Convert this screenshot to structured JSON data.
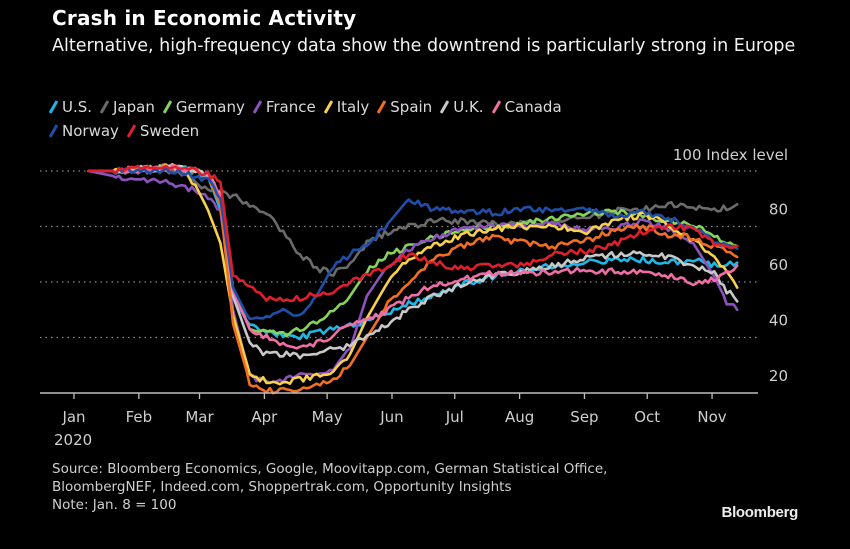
{
  "header": {
    "title": "Crash in Economic Activity",
    "subtitle": "Alternative, high-frequency data show the downtrend is particularly strong in Europe"
  },
  "footer": {
    "source_line1": "Source: Bloomberg Economics, Google, Moovitapp.com, German Statistical Office,",
    "source_line2": "BloombergNEF, Indeed.com, Shoppertrak.com, Opportunity Insights",
    "note": "Note: Jan. 8 = 100",
    "brand": "Bloomberg"
  },
  "chart_data": {
    "type": "line",
    "title": "Crash in Economic Activity",
    "subtitle": "Alternative, high-frequency data show the downtrend is particularly strong in Europe",
    "xlabel": "",
    "ylabel": "Index level",
    "y_unit_label": "100 Index level",
    "ylim": [
      20,
      100
    ],
    "yticks": [
      20,
      40,
      60,
      80,
      100
    ],
    "ytick_labels": [
      "20",
      "40",
      "60",
      "80",
      "100 Index level"
    ],
    "y_axis_side": "right",
    "grid": "horizontal dotted",
    "x_unit": "day of year 2020",
    "xlim": [
      0,
      330
    ],
    "xticks": [
      {
        "label": "Jan",
        "day": 0
      },
      {
        "label": "Feb",
        "day": 31
      },
      {
        "label": "Mar",
        "day": 60
      },
      {
        "label": "Apr",
        "day": 91
      },
      {
        "label": "May",
        "day": 121
      },
      {
        "label": "Jun",
        "day": 152
      },
      {
        "label": "Jul",
        "day": 182
      },
      {
        "label": "Aug",
        "day": 213
      },
      {
        "label": "Sep",
        "day": 244
      },
      {
        "label": "Oct",
        "day": 274
      },
      {
        "label": "Nov",
        "day": 305
      }
    ],
    "x_year_label": "2020",
    "legend_position": "top-left",
    "x": [
      7,
      20,
      35,
      50,
      58,
      64,
      70,
      76,
      84,
      92,
      100,
      108,
      116,
      124,
      132,
      140,
      150,
      160,
      172,
      185,
      200,
      215,
      230,
      245,
      260,
      272,
      284,
      296,
      306,
      312,
      317
    ],
    "series": [
      {
        "name": "U.S.",
        "color": "#1fb8e6",
        "values": [
          100,
          100,
          101,
          101,
          100,
          98,
          86,
          55,
          44,
          42,
          41,
          40,
          42,
          43,
          44,
          46,
          49,
          52,
          55,
          59,
          62,
          64,
          66,
          67,
          68,
          68,
          67,
          68,
          66,
          67,
          67
        ]
      },
      {
        "name": "Japan",
        "color": "#6b6b6b",
        "values": [
          100,
          100,
          100,
          100,
          96,
          93,
          92,
          91,
          88,
          85,
          78,
          70,
          65,
          63,
          66,
          74,
          78,
          80,
          82,
          82,
          81,
          81,
          82,
          83,
          86,
          86,
          88,
          87,
          86,
          87,
          88
        ]
      },
      {
        "name": "Germany",
        "color": "#86d45a",
        "values": [
          100,
          100,
          101,
          101,
          100,
          98,
          88,
          58,
          43,
          42,
          41,
          43,
          45,
          50,
          55,
          64,
          70,
          73,
          76,
          79,
          80,
          81,
          83,
          85,
          85,
          84,
          82,
          80,
          77,
          74,
          73
        ]
      },
      {
        "name": "France",
        "color": "#8c52bd",
        "values": [
          100,
          98,
          97,
          95,
          93,
          91,
          86,
          50,
          26,
          24,
          25,
          26,
          27,
          29,
          36,
          55,
          66,
          72,
          76,
          79,
          80,
          80,
          81,
          79,
          80,
          82,
          79,
          74,
          62,
          53,
          50
        ]
      },
      {
        "name": "Italy",
        "color": "#f7d14b",
        "values": [
          100,
          100,
          101,
          102,
          95,
          86,
          74,
          48,
          27,
          24,
          24,
          25,
          26,
          28,
          34,
          47,
          60,
          68,
          73,
          77,
          79,
          80,
          80,
          78,
          83,
          84,
          81,
          75,
          69,
          64,
          58
        ]
      },
      {
        "name": "Spain",
        "color": "#f26f22",
        "values": [
          100,
          100,
          101,
          101,
          100,
          98,
          88,
          45,
          24,
          21,
          21,
          21,
          23,
          25,
          30,
          40,
          52,
          60,
          68,
          73,
          76,
          74,
          73,
          75,
          79,
          80,
          77,
          76,
          73,
          71,
          69
        ]
      },
      {
        "name": "U.K.",
        "color": "#c8c8c8",
        "values": [
          100,
          100,
          101,
          101,
          100,
          99,
          92,
          55,
          38,
          34,
          34,
          33,
          35,
          36,
          37,
          40,
          45,
          50,
          55,
          59,
          62,
          64,
          66,
          69,
          70,
          70,
          69,
          66,
          64,
          57,
          53
        ]
      },
      {
        "name": "Canada",
        "color": "#ef6ea6",
        "values": [
          100,
          100,
          101,
          101,
          100,
          99,
          91,
          57,
          43,
          40,
          38,
          37,
          38,
          41,
          44,
          46,
          50,
          54,
          59,
          61,
          63,
          63,
          64,
          64,
          64,
          63,
          62,
          60,
          61,
          63,
          66
        ]
      },
      {
        "name": "Norway",
        "color": "#1f4fa8",
        "values": [
          100,
          100,
          100,
          100,
          98,
          97,
          90,
          58,
          46,
          47,
          50,
          48,
          55,
          66,
          70,
          73,
          81,
          90,
          86,
          86,
          85,
          86,
          86,
          86,
          84,
          85,
          83,
          79,
          75,
          73,
          72
        ]
      },
      {
        "name": "Sweden",
        "color": "#e11e2b",
        "values": [
          100,
          100,
          101,
          101,
          100,
          99,
          96,
          62,
          58,
          54,
          53,
          54,
          56,
          57,
          60,
          62,
          66,
          70,
          67,
          65,
          66,
          66,
          70,
          71,
          74,
          78,
          80,
          79,
          74,
          72,
          73
        ]
      }
    ]
  }
}
